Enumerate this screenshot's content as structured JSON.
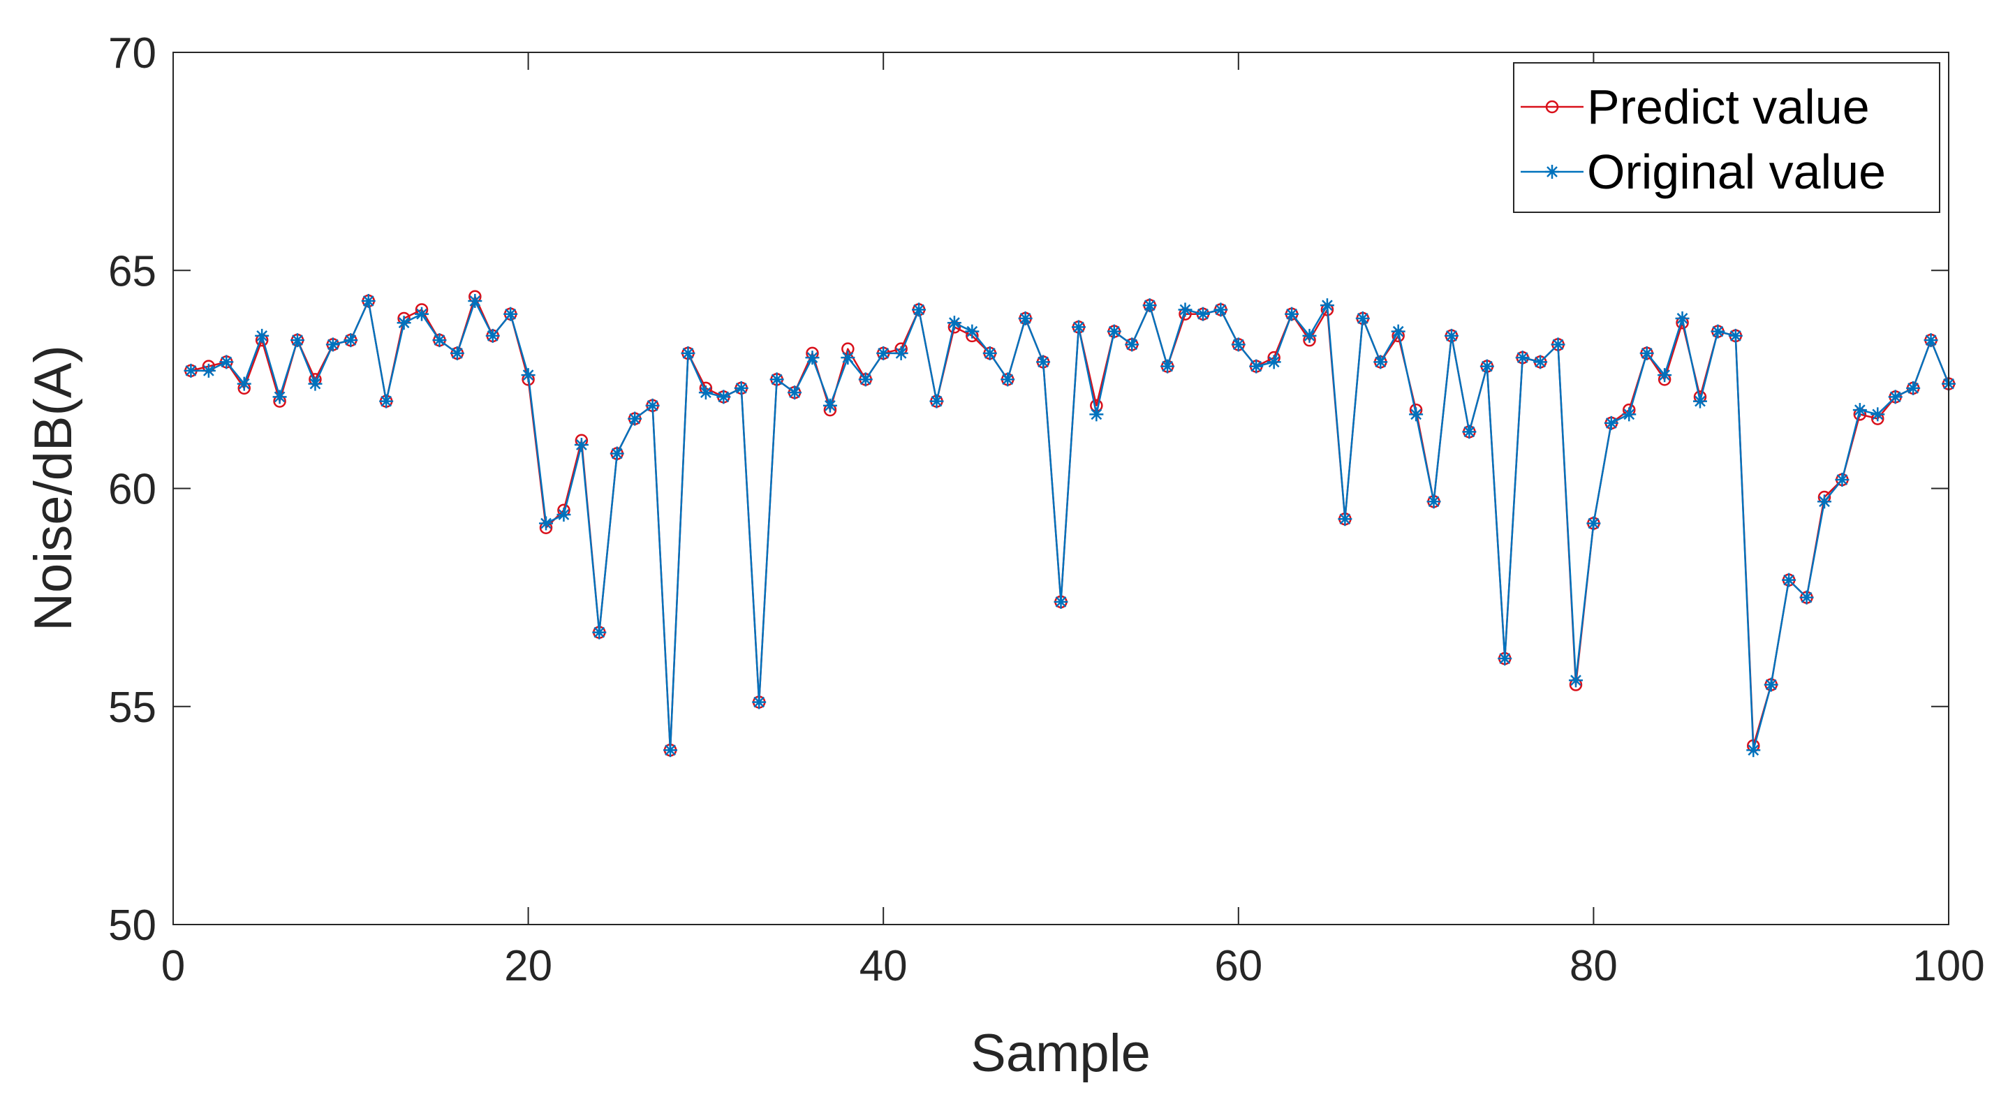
{
  "chart_data": {
    "type": "line",
    "title": "",
    "xlabel": "Sample",
    "ylabel": "Noise/dB(A)",
    "xlim": [
      0,
      100
    ],
    "ylim": [
      50,
      70
    ],
    "xticks": [
      "0",
      "20",
      "40",
      "60",
      "80",
      "100"
    ],
    "yticks": [
      "50",
      "55",
      "60",
      "65",
      "70"
    ],
    "grid": false,
    "legend_position": "top-right",
    "x": [
      1,
      2,
      3,
      4,
      5,
      6,
      7,
      8,
      9,
      10,
      11,
      12,
      13,
      14,
      15,
      16,
      17,
      18,
      19,
      20,
      21,
      22,
      23,
      24,
      25,
      26,
      27,
      28,
      29,
      30,
      31,
      32,
      33,
      34,
      35,
      36,
      37,
      38,
      39,
      40,
      41,
      42,
      43,
      44,
      45,
      46,
      47,
      48,
      49,
      50,
      51,
      52,
      53,
      54,
      55,
      56,
      57,
      58,
      59,
      60,
      61,
      62,
      63,
      64,
      65,
      66,
      67,
      68,
      69,
      70,
      71,
      72,
      73,
      74,
      75,
      76,
      77,
      78,
      79,
      80,
      81,
      82,
      83,
      84,
      85,
      86,
      87,
      88,
      89,
      90,
      91,
      92,
      93,
      94,
      95,
      96,
      97,
      98,
      99,
      100
    ],
    "series": [
      {
        "name": "Predict value",
        "color": "#d9101a",
        "marker": "circle",
        "values": [
          62.7,
          62.8,
          62.9,
          62.3,
          63.4,
          62.0,
          63.4,
          62.5,
          63.3,
          63.4,
          64.3,
          62.0,
          63.9,
          64.1,
          63.4,
          63.1,
          64.4,
          63.5,
          64.0,
          62.5,
          59.1,
          59.5,
          61.1,
          56.7,
          60.8,
          61.6,
          61.9,
          54.0,
          63.1,
          62.3,
          62.1,
          62.3,
          55.1,
          62.5,
          62.2,
          63.1,
          61.8,
          63.2,
          62.5,
          63.1,
          63.2,
          64.1,
          62.0,
          63.7,
          63.5,
          63.1,
          62.5,
          63.9,
          62.9,
          57.4,
          63.7,
          61.9,
          63.6,
          63.3,
          64.2,
          62.8,
          64.0,
          64.0,
          64.1,
          63.3,
          62.8,
          63.0,
          64.0,
          63.4,
          64.1,
          59.3,
          63.9,
          62.9,
          63.5,
          61.8,
          59.7,
          63.5,
          61.3,
          62.8,
          56.1,
          63.0,
          62.9,
          63.3,
          55.5,
          59.2,
          61.5,
          61.8,
          63.1,
          62.5,
          63.8,
          62.1,
          63.6,
          63.5,
          54.1,
          55.5,
          57.9,
          57.5,
          59.8,
          60.2,
          61.7,
          61.6,
          62.1,
          62.3,
          63.4,
          62.4
        ]
      },
      {
        "name": "Original value",
        "color": "#0072bd",
        "marker": "asterisk",
        "values": [
          62.7,
          62.7,
          62.9,
          62.4,
          63.5,
          62.1,
          63.4,
          62.4,
          63.3,
          63.4,
          64.3,
          62.0,
          63.8,
          64.0,
          63.4,
          63.1,
          64.3,
          63.5,
          64.0,
          62.6,
          59.2,
          59.4,
          61.0,
          56.7,
          60.8,
          61.6,
          61.9,
          54.0,
          63.1,
          62.2,
          62.1,
          62.3,
          55.1,
          62.5,
          62.2,
          63.0,
          61.9,
          63.0,
          62.5,
          63.1,
          63.1,
          64.1,
          62.0,
          63.8,
          63.6,
          63.1,
          62.5,
          63.9,
          62.9,
          57.4,
          63.7,
          61.7,
          63.6,
          63.3,
          64.2,
          62.8,
          64.1,
          64.0,
          64.1,
          63.3,
          62.8,
          62.9,
          64.0,
          63.5,
          64.2,
          59.3,
          63.9,
          62.9,
          63.6,
          61.7,
          59.7,
          63.5,
          61.3,
          62.8,
          56.1,
          63.0,
          62.9,
          63.3,
          55.6,
          59.2,
          61.5,
          61.7,
          63.1,
          62.6,
          63.9,
          62.0,
          63.6,
          63.5,
          54.0,
          55.5,
          57.9,
          57.5,
          59.7,
          60.2,
          61.8,
          61.7,
          62.1,
          62.3,
          63.4,
          62.4
        ]
      }
    ]
  }
}
